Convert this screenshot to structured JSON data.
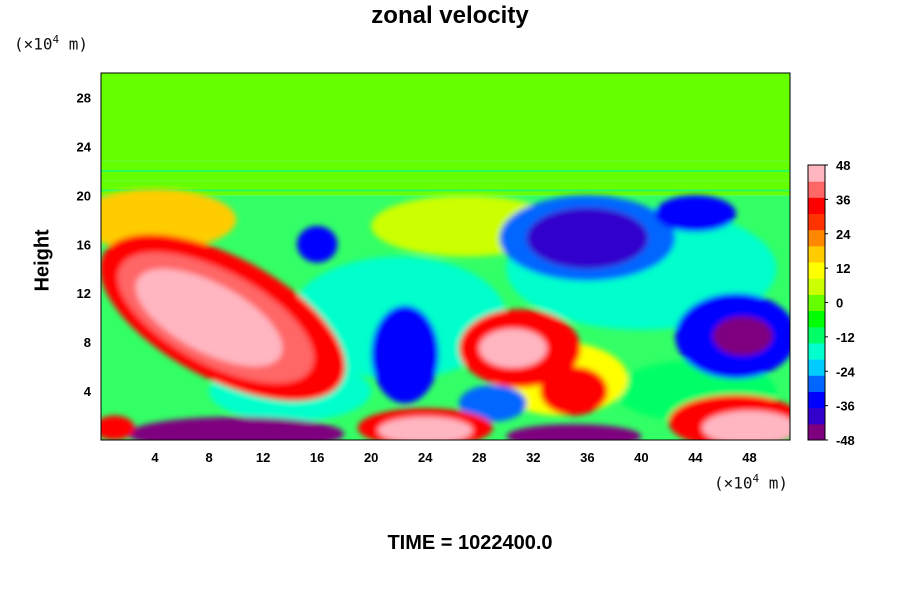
{
  "chart_data": {
    "type": "heatmap",
    "title": "zonal velocity",
    "ylabel": "Height",
    "xlabel": "",
    "unit_x": "(×10⁴ m)",
    "unit_y": "(×10⁴ m)",
    "unit_base": "(×10",
    "unit_exp": "4",
    "unit_tail": " m)",
    "footer": "TIME = 1022400.0",
    "xlim": [
      0,
      51
    ],
    "ylim": [
      0,
      30
    ],
    "x_ticks": [
      4,
      8,
      12,
      16,
      20,
      24,
      28,
      32,
      36,
      40,
      44,
      48
    ],
    "y_ticks": [
      4,
      8,
      12,
      16,
      20,
      24,
      28
    ],
    "colorbar": {
      "min": -48,
      "max": 48,
      "ticks": [
        48,
        36,
        24,
        12,
        0,
        -12,
        -24,
        -36,
        -48
      ],
      "colors": [
        "#7f007f",
        "#3300cc",
        "#0000ff",
        "#0066ff",
        "#00ccff",
        "#00ffcc",
        "#00ff66",
        "#00ff00",
        "#66ff00",
        "#ccff00",
        "#ffff00",
        "#ffcc00",
        "#ff8800",
        "#ff3300",
        "#ff0000",
        "#ff6666",
        "#ffb6c1"
      ]
    },
    "features": [
      {
        "kind": "positive_max",
        "x": 8,
        "y": 10,
        "value": 48
      },
      {
        "kind": "positive",
        "x": 30,
        "y": 8,
        "value": 44
      },
      {
        "kind": "negative",
        "x": 36,
        "y": 17,
        "value": -40
      },
      {
        "kind": "negative_min",
        "x": 47,
        "y": 8,
        "value": -48
      },
      {
        "kind": "negative",
        "x": 22,
        "y": 6,
        "value": -36
      },
      {
        "kind": "negative_min",
        "x": 8,
        "y": 1,
        "value": -48
      },
      {
        "kind": "negative_min",
        "x": 35,
        "y": 0.5,
        "value": -48
      },
      {
        "kind": "positive_max",
        "x": 24,
        "y": 1,
        "value": 48
      },
      {
        "kind": "positive_max",
        "x": 47,
        "y": 1,
        "value": 48
      },
      {
        "kind": "negative",
        "x": 16,
        "y": 16,
        "value": -36
      }
    ],
    "upper_layer_value": 0
  }
}
